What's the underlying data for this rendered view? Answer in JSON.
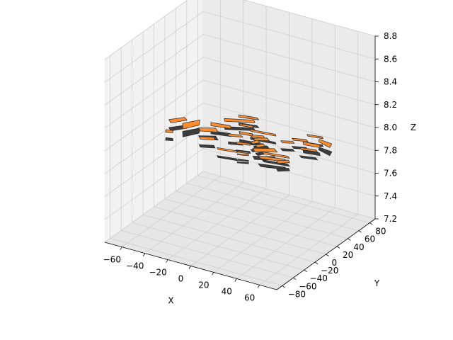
{
  "chart_data": {
    "type": "3d-polygon-collection",
    "title": "",
    "xlabel": "X",
    "ylabel": "Y",
    "zlabel": "Z",
    "xlim": [
      -75,
      75
    ],
    "ylim": [
      -90,
      90
    ],
    "zlim": [
      7.2,
      8.8
    ],
    "x_ticks": [
      "−60",
      "−40",
      "−20",
      "0",
      "20",
      "40",
      "60"
    ],
    "y_ticks": [
      "−80",
      "−60",
      "−40",
      "−20",
      "0",
      "20",
      "40",
      "60",
      "80"
    ],
    "z_ticks": [
      "7.2",
      "7.4",
      "7.6",
      "7.8",
      "8.0",
      "8.2",
      "8.4",
      "8.6",
      "8.8"
    ],
    "grid": true,
    "face_color": "#ff8c2a",
    "edge_color": "#3a3a3a",
    "polygons": [
      {
        "pts": [
          [
            -45,
            -10
          ],
          [
            -38,
            5
          ],
          [
            -42,
            15
          ],
          [
            -50,
            0
          ]
        ]
      },
      {
        "pts": [
          [
            -55,
            -20
          ],
          [
            -50,
            -18
          ],
          [
            -48,
            -22
          ],
          [
            -53,
            -25
          ]
        ]
      },
      {
        "pts": [
          [
            -58,
            -5
          ],
          [
            -50,
            8
          ],
          [
            -54,
            12
          ],
          [
            -62,
            0
          ]
        ]
      },
      {
        "pts": [
          [
            -30,
            10
          ],
          [
            -15,
            15
          ],
          [
            -18,
            20
          ],
          [
            -33,
            16
          ]
        ]
      },
      {
        "pts": [
          [
            -32,
            -5
          ],
          [
            -20,
            2
          ],
          [
            -25,
            8
          ],
          [
            -36,
            0
          ]
        ]
      },
      {
        "pts": [
          [
            -25,
            -20
          ],
          [
            -15,
            -14
          ],
          [
            -18,
            -10
          ],
          [
            -28,
            -16
          ]
        ]
      },
      {
        "pts": [
          [
            -20,
            40
          ],
          [
            -5,
            45
          ],
          [
            -8,
            48
          ],
          [
            -22,
            44
          ]
        ]
      },
      {
        "pts": [
          [
            -25,
            25
          ],
          [
            -5,
            38
          ],
          [
            -8,
            42
          ],
          [
            -28,
            30
          ]
        ]
      },
      {
        "pts": [
          [
            -5,
            10
          ],
          [
            5,
            12
          ],
          [
            3,
            16
          ],
          [
            -7,
            14
          ]
        ]
      },
      {
        "pts": [
          [
            -10,
            0
          ],
          [
            0,
            5
          ],
          [
            -3,
            8
          ],
          [
            -12,
            4
          ]
        ]
      },
      {
        "pts": [
          [
            0,
            20
          ],
          [
            20,
            24
          ],
          [
            18,
            27
          ],
          [
            -2,
            23
          ]
        ]
      },
      {
        "pts": [
          [
            5,
            10
          ],
          [
            15,
            14
          ],
          [
            12,
            18
          ],
          [
            3,
            14
          ]
        ]
      },
      {
        "pts": [
          [
            10,
            5
          ],
          [
            20,
            12
          ],
          [
            16,
            16
          ],
          [
            8,
            9
          ]
        ]
      },
      {
        "pts": [
          [
            12,
            -2
          ],
          [
            16,
            4
          ],
          [
            12,
            7
          ],
          [
            9,
            1
          ]
        ]
      },
      {
        "pts": [
          [
            18,
            -6
          ],
          [
            22,
            0
          ],
          [
            19,
            3
          ],
          [
            15,
            -3
          ]
        ]
      },
      {
        "pts": [
          [
            20,
            -15
          ],
          [
            35,
            -5
          ],
          [
            30,
            0
          ],
          [
            16,
            -10
          ]
        ]
      },
      {
        "pts": [
          [
            2,
            -10
          ],
          [
            12,
            -6
          ],
          [
            10,
            -3
          ],
          [
            0,
            -7
          ]
        ]
      },
      {
        "pts": [
          [
            10,
            -25
          ],
          [
            18,
            -22
          ],
          [
            17,
            -20
          ],
          [
            9,
            -23
          ]
        ]
      },
      {
        "pts": [
          [
            12,
            -30
          ],
          [
            20,
            -26
          ],
          [
            19,
            -24
          ],
          [
            11,
            -28
          ]
        ]
      },
      {
        "pts": [
          [
            -5,
            -30
          ],
          [
            10,
            -26
          ],
          [
            8,
            -23
          ],
          [
            -7,
            -27
          ]
        ]
      },
      {
        "pts": [
          [
            30,
            -25
          ],
          [
            50,
            -18
          ],
          [
            46,
            -14
          ],
          [
            26,
            -21
          ]
        ]
      },
      {
        "pts": [
          [
            28,
            -15
          ],
          [
            48,
            -10
          ],
          [
            45,
            -7
          ],
          [
            25,
            -12
          ]
        ]
      },
      {
        "pts": [
          [
            45,
            -25
          ],
          [
            52,
            -18
          ],
          [
            49,
            -14
          ],
          [
            42,
            -21
          ]
        ]
      },
      {
        "pts": [
          [
            30,
            15
          ],
          [
            38,
            20
          ],
          [
            35,
            23
          ],
          [
            27,
            18
          ]
        ]
      },
      {
        "pts": [
          [
            35,
            25
          ],
          [
            45,
            30
          ],
          [
            42,
            33
          ],
          [
            32,
            28
          ]
        ]
      },
      {
        "pts": [
          [
            45,
            22
          ],
          [
            58,
            25
          ],
          [
            55,
            30
          ],
          [
            42,
            27
          ]
        ]
      },
      {
        "pts": [
          [
            48,
            12
          ],
          [
            60,
            16
          ],
          [
            57,
            19
          ],
          [
            45,
            15
          ]
        ]
      },
      {
        "pts": [
          [
            40,
            40
          ],
          [
            52,
            43
          ],
          [
            50,
            46
          ],
          [
            38,
            43
          ]
        ]
      },
      {
        "pts": [
          [
            52,
            35
          ],
          [
            64,
            30
          ],
          [
            62,
            38
          ],
          [
            50,
            40
          ]
        ]
      },
      {
        "pts": [
          [
            -12,
            25
          ],
          [
            -2,
            28
          ],
          [
            -4,
            31
          ],
          [
            -14,
            28
          ]
        ]
      }
    ]
  }
}
